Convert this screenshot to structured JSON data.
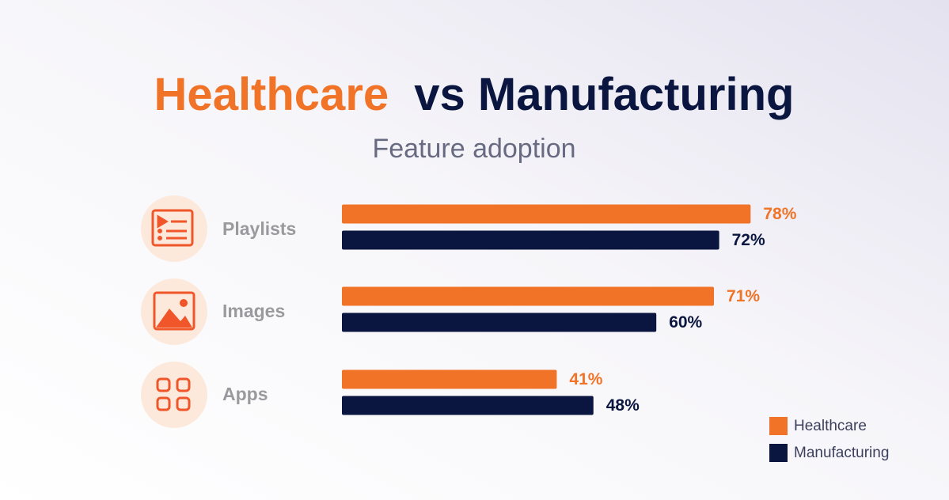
{
  "chart_data": {
    "type": "bar",
    "orientation": "horizontal",
    "title": [
      "Healthcare",
      "vs Manufacturing"
    ],
    "subtitle": "Feature adoption",
    "categories": [
      "Playlists",
      "Images",
      "Apps"
    ],
    "series": [
      {
        "name": "Healthcare",
        "color": "#f07328",
        "values": [
          78,
          71,
          41
        ],
        "value_labels": [
          "78%",
          "71%",
          "41%"
        ]
      },
      {
        "name": "Manufacturing",
        "color": "#0b1640",
        "values": [
          72,
          60,
          48
        ],
        "value_labels": [
          "72%",
          "60%",
          "48%"
        ]
      }
    ],
    "legend": "bottom-right",
    "grid": false
  }
}
